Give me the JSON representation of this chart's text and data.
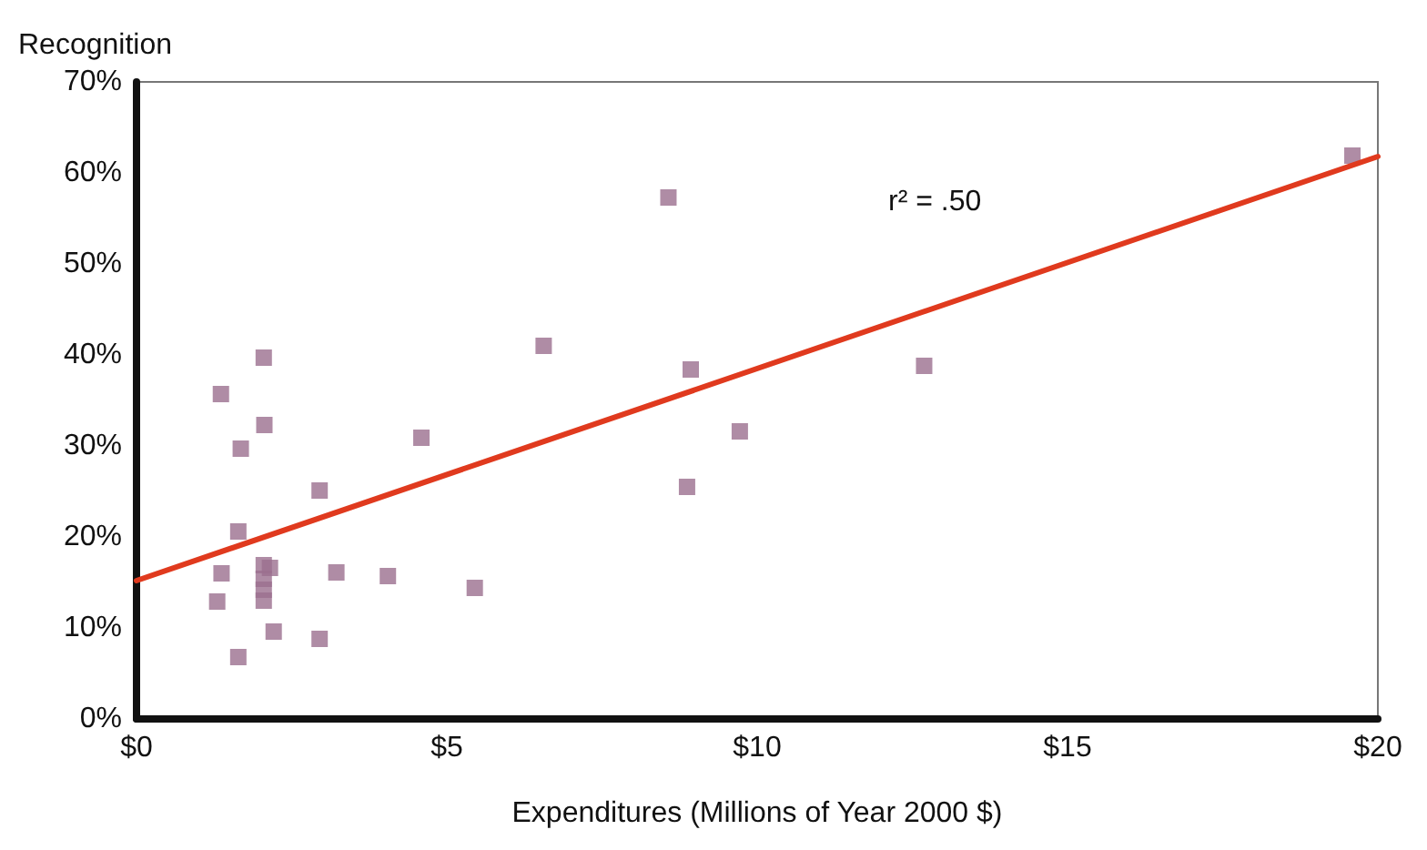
{
  "chart_data": {
    "type": "scatter",
    "xlabel": "Expenditures (Millions of Year 2000 $)",
    "ylabel": "Recognition",
    "annotations": [
      "r² = .50"
    ],
    "xlim": [
      0,
      20
    ],
    "xticks": [
      {
        "value": 0,
        "label": "$0"
      },
      {
        "value": 5,
        "label": "$5"
      },
      {
        "value": 10,
        "label": "$10"
      },
      {
        "value": 15,
        "label": "$15"
      },
      {
        "value": 20,
        "label": "$20"
      }
    ],
    "ylim": [
      0,
      70
    ],
    "yticks": [
      {
        "value": 0,
        "label": "0%"
      },
      {
        "value": 10,
        "label": "10%"
      },
      {
        "value": 20,
        "label": "20%"
      },
      {
        "value": 30,
        "label": "30%"
      },
      {
        "value": 40,
        "label": "40%"
      },
      {
        "value": 50,
        "label": "50%"
      },
      {
        "value": 60,
        "label": "60%"
      },
      {
        "value": 70,
        "label": "70%"
      }
    ],
    "grid": false,
    "marker": "square",
    "series": [
      {
        "color": "#9b6f8e",
        "x": [
          1.36,
          2.05,
          1.68,
          2.06,
          1.64,
          1.37,
          1.3,
          2.05,
          2.15,
          2.05,
          2.05,
          2.05,
          2.21,
          1.64,
          2.95,
          2.95,
          3.22,
          4.05,
          4.59,
          5.45,
          6.56,
          8.57,
          8.93,
          8.87,
          9.72,
          12.69,
          19.59
        ],
        "values": [
          35.7,
          39.7,
          29.7,
          32.3,
          20.6,
          16,
          12.9,
          16.9,
          16.6,
          15.4,
          14.2,
          13,
          9.6,
          6.8,
          25.1,
          8.8,
          16.1,
          15.7,
          30.9,
          14.4,
          41,
          57.3,
          38.4,
          25.5,
          31.6,
          38.8,
          61.9
        ]
      },
      {
        "type": "line",
        "color": "#e03a1e",
        "marker": "none",
        "line_style": "solid",
        "x": [
          0,
          20
        ],
        "values": [
          15.2,
          61.8
        ]
      }
    ]
  }
}
